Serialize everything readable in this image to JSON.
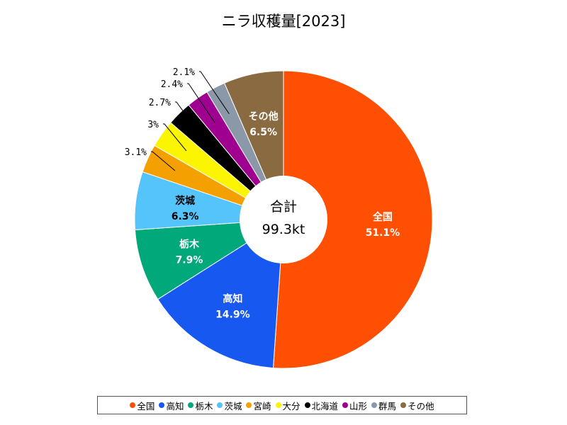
{
  "title": "ニラ収穫量[2023]",
  "center": {
    "label": "合計",
    "value": "99.3kt"
  },
  "chart_data": {
    "type": "pie",
    "title": "ニラ収穫量[2023]",
    "total_label": "合計",
    "total_value": "99.3kt",
    "slices": [
      {
        "name": "全国",
        "percent": 51.1,
        "label": "51.1%",
        "color": "#ff4f02",
        "inside": true
      },
      {
        "name": "高知",
        "percent": 14.9,
        "label": "14.9%",
        "color": "#1758f0",
        "inside": true
      },
      {
        "name": "栃木",
        "percent": 7.9,
        "label": "7.9%",
        "color": "#00a87a",
        "inside": true
      },
      {
        "name": "茨城",
        "percent": 6.3,
        "label": "6.3%",
        "color": "#55c4fb",
        "inside": true,
        "dark": true
      },
      {
        "name": "宮崎",
        "percent": 3.1,
        "label": "3.1%",
        "color": "#f4a000",
        "inside": false
      },
      {
        "name": "大分",
        "percent": 3,
        "label": "3%",
        "color": "#fbf500",
        "inside": false
      },
      {
        "name": "北海道",
        "percent": 2.7,
        "label": "2.7%",
        "color": "#000000",
        "inside": false
      },
      {
        "name": "山形",
        "percent": 2.4,
        "label": "2.4%",
        "color": "#a0008f",
        "inside": false
      },
      {
        "name": "群馬",
        "percent": 2.1,
        "label": "2.1%",
        "color": "#8a98a8",
        "inside": false
      },
      {
        "name": "その他",
        "percent": 6.5,
        "label": "6.5%",
        "color": "#8a6a40",
        "inside": true
      }
    ],
    "legend_position": "bottom"
  }
}
